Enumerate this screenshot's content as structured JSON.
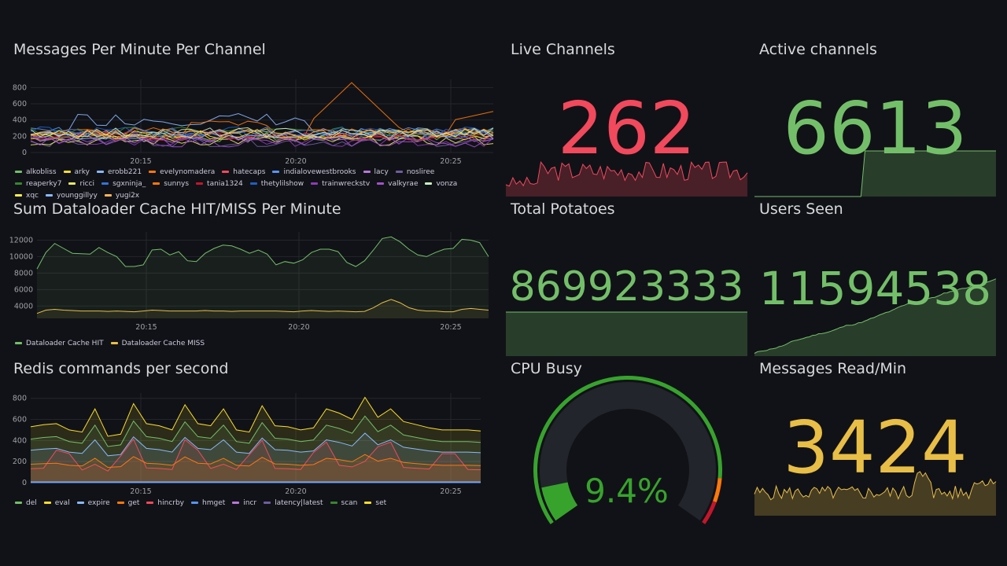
{
  "panels": {
    "mpm": {
      "title": "Messages Per Minute Per Channel",
      "legend": [
        "alkobliss",
        "arky",
        "erobb221",
        "evelynomadera",
        "hatecaps",
        "indialovewestbrooks",
        "lacy",
        "nosliree",
        "reaperky7",
        "ricci",
        "sgxninja_",
        "sunnys",
        "tania1324",
        "thetylilshow",
        "trainwreckstv",
        "valkyrae",
        "vonza",
        "xqc",
        "younggillyy",
        "yugi2x"
      ]
    },
    "cache": {
      "title": "Sum Dataloader Cache HIT/MISS Per Minute",
      "legend": [
        "Dataloader Cache HIT",
        "Dataloader Cache MISS"
      ]
    },
    "redis": {
      "title": "Redis commands per second",
      "legend": [
        "del",
        "eval",
        "expire",
        "get",
        "hincrby",
        "hmget",
        "incr",
        "latency|latest",
        "scan",
        "set"
      ]
    },
    "live": {
      "title": "Live Channels",
      "value": "262",
      "color": "#f2495c"
    },
    "active": {
      "title": "Active channels",
      "value": "6613",
      "color": "#73bf69"
    },
    "potatoes": {
      "title": "Total Potatoes",
      "value": "869923333",
      "color": "#73bf69"
    },
    "users": {
      "title": "Users Seen",
      "value": "11594538",
      "color": "#73bf69"
    },
    "cpu": {
      "title": "CPU Busy",
      "value": "9.4%",
      "percent": 9.4,
      "color": "#37872d"
    },
    "reads": {
      "title": "Messages Read/Min",
      "value": "3424",
      "color": "#e8be46"
    }
  },
  "chart_data": [
    {
      "type": "line",
      "title": "Messages Per Minute Per Channel",
      "x_ticks": [
        "20:15",
        "20:20",
        "20:25"
      ],
      "y_ticks": [
        0,
        200,
        400,
        600,
        800
      ],
      "ylim": [
        0,
        900
      ],
      "series_count": 20,
      "colors": [
        "#73bf69",
        "#fade2a",
        "#8ab8ff",
        "#ff780a",
        "#f2495c",
        "#5794f2",
        "#b877d9",
        "#705da0",
        "#37872d",
        "#e8e864",
        "#3274d9",
        "#ff780a",
        "#c4162a",
        "#1f60c4",
        "#8f3bb8",
        "#a352cc",
        "#c8f2c2",
        "#ffee52",
        "#8ab8ff",
        "#ffb357"
      ],
      "highlight_series": {
        "name": "evelynomadera",
        "peak": 870
      }
    },
    {
      "type": "area",
      "title": "Sum Dataloader Cache HIT/MISS Per Minute",
      "x_ticks": [
        "20:15",
        "20:20",
        "20:25"
      ],
      "y_ticks": [
        4000,
        6000,
        8000,
        10000,
        12000
      ],
      "ylim": [
        2500,
        13000
      ],
      "series": [
        {
          "name": "Dataloader Cache HIT",
          "color": "#73bf69",
          "values": [
            8500,
            10500,
            11600,
            11000,
            10400,
            10350,
            10300,
            11100,
            10500,
            10000,
            8800,
            8800,
            9000,
            10800,
            10900,
            10200,
            10600,
            9500,
            9400,
            10400,
            11000,
            11400,
            11300,
            10900,
            10400,
            10800,
            10300,
            9000,
            9400,
            9200,
            9600,
            10500,
            10900,
            10900,
            10600,
            9300,
            8800,
            9500,
            10800,
            12200,
            12400,
            11800,
            10900,
            10200,
            10000,
            10500,
            10900,
            11000,
            12100,
            12000,
            11700,
            10000
          ]
        },
        {
          "name": "Dataloader Cache MISS",
          "color": "#e8be46",
          "values": [
            3100,
            3500,
            3600,
            3500,
            3450,
            3400,
            3400,
            3400,
            3350,
            3400,
            3350,
            3300,
            3400,
            3500,
            3450,
            3400,
            3400,
            3400,
            3400,
            3450,
            3400,
            3400,
            3350,
            3400,
            3400,
            3400,
            3400,
            3400,
            3350,
            3300,
            3400,
            3450,
            3400,
            3350,
            3400,
            3350,
            3300,
            3350,
            3800,
            4400,
            4800,
            4400,
            3800,
            3500,
            3400,
            3400,
            3300,
            3300,
            3600,
            3700,
            3600,
            3500
          ]
        }
      ]
    },
    {
      "type": "area",
      "stacked": true,
      "title": "Redis commands per second",
      "x_ticks": [
        "20:15",
        "20:20",
        "20:25"
      ],
      "y_ticks": [
        0,
        200,
        400,
        600,
        800
      ],
      "ylim": [
        0,
        850
      ],
      "series": [
        {
          "name": "del",
          "color": "#73bf69"
        },
        {
          "name": "eval",
          "color": "#fade2a"
        },
        {
          "name": "expire",
          "color": "#8ab8ff"
        },
        {
          "name": "get",
          "color": "#ff780a"
        },
        {
          "name": "hincrby",
          "color": "#f2495c"
        },
        {
          "name": "hmget",
          "color": "#5794f2"
        },
        {
          "name": "incr",
          "color": "#b877d9"
        },
        {
          "name": "latency|latest",
          "color": "#705da0"
        },
        {
          "name": "scan",
          "color": "#37872d"
        },
        {
          "name": "set",
          "color": "#fade2a"
        }
      ],
      "totals": [
        530,
        550,
        560,
        500,
        480,
        700,
        440,
        460,
        750,
        560,
        540,
        500,
        740,
        560,
        540,
        700,
        500,
        480,
        730,
        540,
        530,
        500,
        520,
        700,
        660,
        600,
        810,
        620,
        700,
        580,
        550,
        520,
        500,
        500,
        500,
        490
      ]
    }
  ]
}
